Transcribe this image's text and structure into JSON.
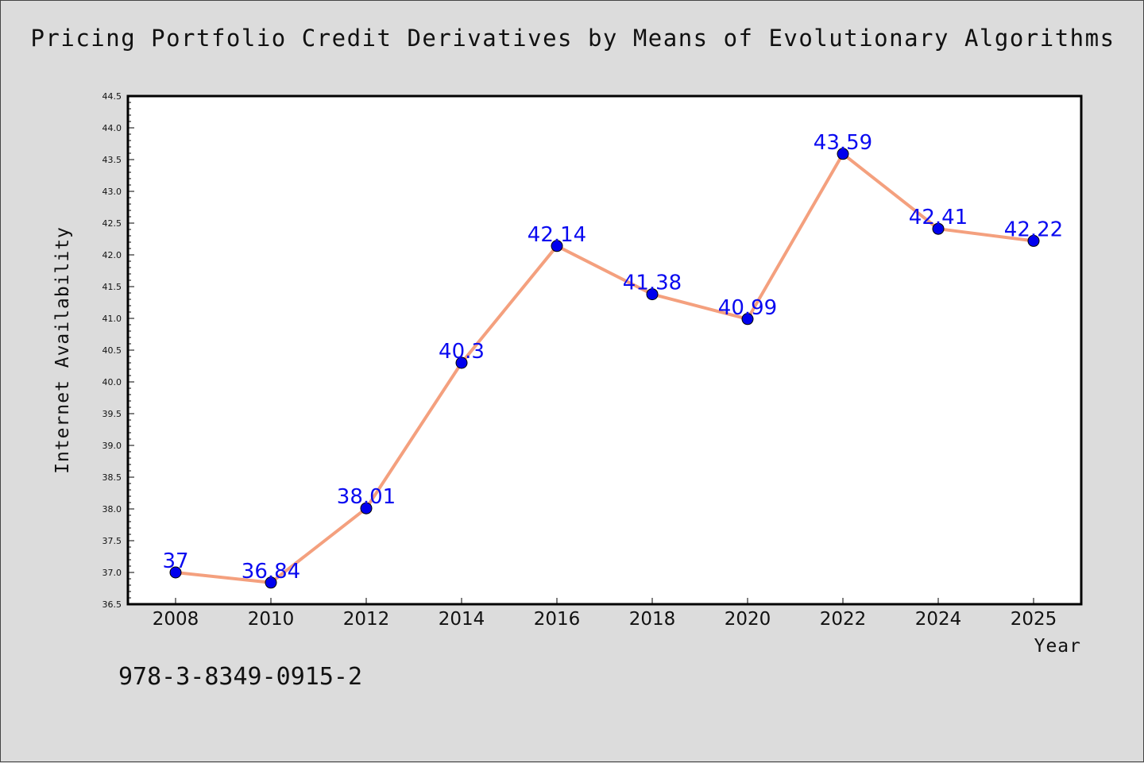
{
  "title": "Pricing Portfolio Credit Derivatives by Means of Evolutionary Algorithms",
  "isbn": "978-3-8349-0915-2",
  "chart_data": {
    "type": "line",
    "title": "Pricing Portfolio Credit Derivatives by Means of Evolutionary Algorithms",
    "xlabel": "Year",
    "ylabel": "Internet Availability",
    "categories": [
      "2008",
      "2010",
      "2012",
      "2014",
      "2016",
      "2018",
      "2020",
      "2022",
      "2024",
      "2025"
    ],
    "series": [
      {
        "values": [
          37,
          36.84,
          38.01,
          40.3,
          42.14,
          41.38,
          40.99,
          43.59,
          42.41,
          42.22
        ],
        "labels": [
          "37",
          "36.84",
          "38.01",
          "40.3",
          "42.14",
          "41.38",
          "40.99",
          "43.59",
          "42.41",
          "42.22"
        ]
      }
    ],
    "ylim": [
      36.5,
      44.5
    ],
    "yticks": [
      "36.5",
      "37.0",
      "37.5",
      "38.0",
      "38.5",
      "39.0",
      "39.5",
      "40.0",
      "40.5",
      "41.0",
      "41.5",
      "42.0",
      "42.5",
      "43.0",
      "43.5",
      "44.0",
      "44.5"
    ],
    "grid": false,
    "colors": {
      "line": "#f4a07e",
      "marker": "#0000ee",
      "marker_edge": "#000000",
      "label": "#0a0af0",
      "background": "#dcdcdc",
      "plot_area": "#ffffff"
    }
  }
}
